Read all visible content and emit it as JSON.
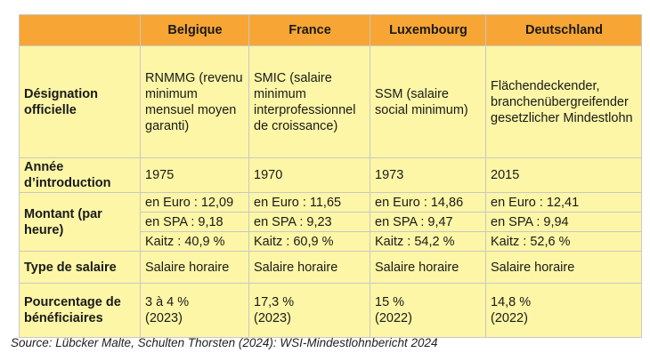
{
  "columns": [
    "",
    "Belgique",
    "France",
    "Luxembourg",
    "Deutschland"
  ],
  "designation": {
    "label": "Désignation officielle",
    "values": [
      "RNMMG (revenu minimum mensuel moyen garanti)",
      "SMIC (salaire minimum interprofessionnel de croissance)",
      "SSM (salaire social minimum)",
      "Flächendeckender, branchenübergreifender gesetzlicher Mindestlohn"
    ]
  },
  "year": {
    "label": "Année d’introduction",
    "values": [
      "1975",
      "1970",
      "1973",
      "2015"
    ]
  },
  "amount": {
    "label": "Montant (par heure)",
    "euro": [
      "en Euro : 12,09",
      "en Euro : 11,65",
      "en Euro : 14,86",
      "en Euro : 12,41"
    ],
    "spa": [
      "en SPA : 9,18",
      "en SPA : 9,23",
      "en SPA : 9,47",
      "en SPA : 9,94"
    ],
    "kaitz": [
      "Kaitz : 40,9 %",
      "Kaitz : 60,9 %",
      "Kaitz : 54,2 %",
      "Kaitz : 52,6 %"
    ]
  },
  "wage_type": {
    "label": "Type de salaire",
    "values": [
      "Salaire horaire",
      "Salaire horaire",
      "Salaire horaire",
      "Salaire horaire"
    ]
  },
  "beneficiaries": {
    "label": "Pourcentage de bénéficiaires",
    "values": [
      {
        "pct": "3 à 4 %",
        "year": "(2023)"
      },
      {
        "pct": "17,3 %",
        "year": "(2023)"
      },
      {
        "pct": "15 %",
        "year": "(2022)"
      },
      {
        "pct": "14,8 %",
        "year": "(2022)"
      }
    ]
  },
  "source": "Source: Lübcker Malte, Schulten Thorsten (2024): WSI-Mindestlohnbericht 2024",
  "colors": {
    "header": "#f7a534",
    "cell": "#fcf6a6",
    "border": "#c8c8c8"
  }
}
